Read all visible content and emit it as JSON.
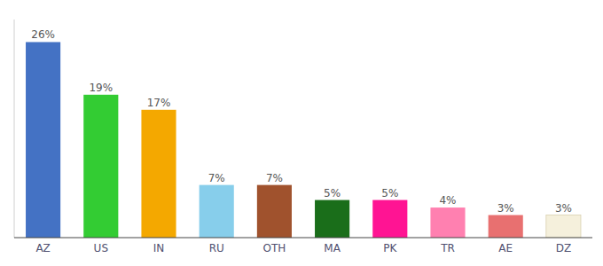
{
  "chart_data": {
    "type": "bar",
    "categories": [
      "AZ",
      "US",
      "IN",
      "RU",
      "OTH",
      "MA",
      "PK",
      "TR",
      "AE",
      "DZ"
    ],
    "values": [
      26,
      19,
      17,
      7,
      7,
      5,
      5,
      4,
      3,
      3
    ],
    "value_labels": [
      "26%",
      "19%",
      "17%",
      "7%",
      "7%",
      "5%",
      "5%",
      "4%",
      "3%",
      "3%"
    ],
    "colors": [
      "#4472c4",
      "#33cc33",
      "#f4a800",
      "#87ceeb",
      "#a0522d",
      "#1a6e1a",
      "#ff1493",
      "#ff80b0",
      "#e87070",
      "#f5f0dc"
    ],
    "ylim": [
      0,
      29
    ],
    "data_labels": true,
    "tick_labels": "x",
    "grid": false
  }
}
